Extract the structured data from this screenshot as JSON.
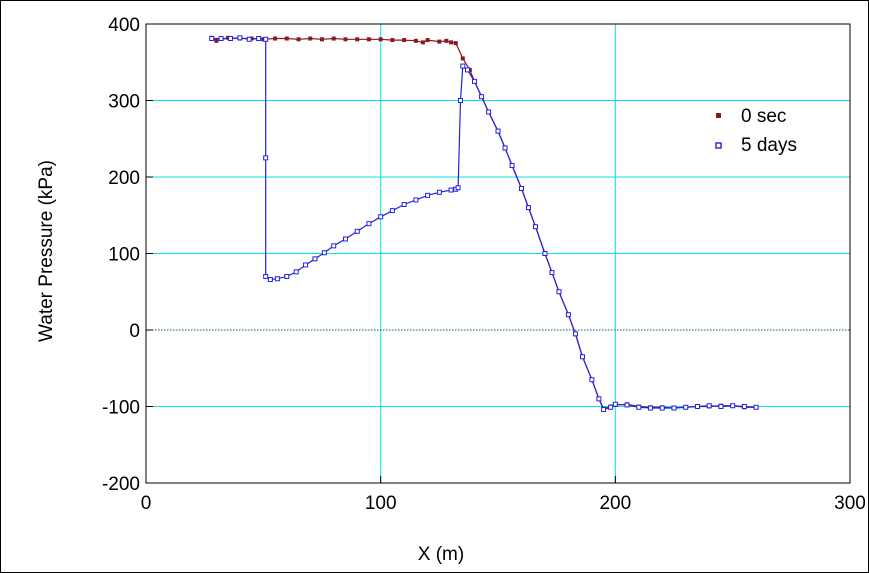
{
  "chart_data": {
    "type": "scatter",
    "title": "",
    "xlabel": "X (m)",
    "ylabel": "Water Pressure (kPa)",
    "xlim": [
      0,
      300
    ],
    "ylim": [
      -200,
      400
    ],
    "x_ticks": [
      "0",
      "100",
      "200",
      "300"
    ],
    "y_ticks": [
      "400",
      "300",
      "200",
      "100",
      "0",
      "-100",
      "-200"
    ],
    "x_tick_values": [
      0,
      100,
      200,
      300
    ],
    "y_tick_values": [
      400,
      300,
      200,
      100,
      0,
      -100,
      -200
    ],
    "grid": true,
    "grid_color": "#00e5e5",
    "zero_line": true,
    "legend_position": "top-right",
    "series": [
      {
        "name": "0 sec",
        "color": "#8b1a1a",
        "marker": "filled-square",
        "points": [
          [
            28,
            382
          ],
          [
            30,
            378
          ],
          [
            35,
            382
          ],
          [
            40,
            381
          ],
          [
            45,
            381
          ],
          [
            50,
            380
          ],
          [
            55,
            381
          ],
          [
            60,
            381
          ],
          [
            65,
            380
          ],
          [
            70,
            381
          ],
          [
            75,
            380
          ],
          [
            80,
            381
          ],
          [
            85,
            380
          ],
          [
            90,
            380
          ],
          [
            95,
            380
          ],
          [
            100,
            380
          ],
          [
            105,
            379
          ],
          [
            110,
            379
          ],
          [
            115,
            378
          ],
          [
            118,
            376
          ],
          [
            120,
            379
          ],
          [
            125,
            377
          ],
          [
            128,
            378
          ],
          [
            130,
            376
          ],
          [
            132,
            375
          ],
          [
            135,
            355
          ],
          [
            138,
            340
          ],
          [
            140,
            325
          ],
          [
            143,
            305
          ],
          [
            146,
            285
          ],
          [
            150,
            260
          ],
          [
            153,
            238
          ],
          [
            156,
            215
          ],
          [
            160,
            185
          ],
          [
            163,
            160
          ],
          [
            166,
            135
          ],
          [
            170,
            100
          ],
          [
            173,
            75
          ],
          [
            176,
            50
          ],
          [
            180,
            20
          ],
          [
            183,
            -5
          ],
          [
            186,
            -35
          ],
          [
            190,
            -65
          ],
          [
            193,
            -90
          ],
          [
            195,
            -103
          ],
          [
            198,
            -100
          ],
          [
            200,
            -98
          ],
          [
            205,
            -97
          ],
          [
            210,
            -100
          ],
          [
            215,
            -101
          ],
          [
            220,
            -101
          ],
          [
            225,
            -102
          ],
          [
            230,
            -101
          ],
          [
            235,
            -100
          ],
          [
            240,
            -100
          ],
          [
            245,
            -99
          ],
          [
            250,
            -99
          ],
          [
            255,
            -101
          ],
          [
            260,
            -101
          ]
        ]
      },
      {
        "name": "5 days",
        "color": "#2222dd",
        "marker": "hollow-square",
        "points": [
          [
            28,
            381
          ],
          [
            32,
            381
          ],
          [
            36,
            381
          ],
          [
            40,
            382
          ],
          [
            44,
            380
          ],
          [
            48,
            381
          ],
          [
            51,
            380
          ],
          [
            51,
            225
          ],
          [
            51,
            70
          ],
          [
            53,
            66
          ],
          [
            56,
            67
          ],
          [
            60,
            70
          ],
          [
            64,
            76
          ],
          [
            68,
            85
          ],
          [
            72,
            93
          ],
          [
            76,
            101
          ],
          [
            80,
            110
          ],
          [
            85,
            119
          ],
          [
            90,
            129
          ],
          [
            95,
            139
          ],
          [
            100,
            148
          ],
          [
            105,
            156
          ],
          [
            110,
            164
          ],
          [
            115,
            170
          ],
          [
            120,
            176
          ],
          [
            125,
            180
          ],
          [
            130,
            183
          ],
          [
            132,
            184
          ],
          [
            133,
            186
          ],
          [
            134,
            300
          ],
          [
            135,
            345
          ],
          [
            137,
            340
          ],
          [
            140,
            325
          ],
          [
            143,
            305
          ],
          [
            146,
            285
          ],
          [
            150,
            260
          ],
          [
            153,
            238
          ],
          [
            156,
            215
          ],
          [
            160,
            185
          ],
          [
            163,
            160
          ],
          [
            166,
            135
          ],
          [
            170,
            100
          ],
          [
            173,
            75
          ],
          [
            176,
            50
          ],
          [
            180,
            20
          ],
          [
            183,
            -5
          ],
          [
            186,
            -35
          ],
          [
            190,
            -65
          ],
          [
            193,
            -90
          ],
          [
            195,
            -104
          ],
          [
            198,
            -101
          ],
          [
            200,
            -97
          ],
          [
            205,
            -98
          ],
          [
            210,
            -101
          ],
          [
            215,
            -102
          ],
          [
            220,
            -102
          ],
          [
            225,
            -102
          ],
          [
            230,
            -101
          ],
          [
            235,
            -100
          ],
          [
            240,
            -99
          ],
          [
            245,
            -100
          ],
          [
            250,
            -99
          ],
          [
            255,
            -100
          ],
          [
            260,
            -101
          ]
        ]
      }
    ]
  }
}
